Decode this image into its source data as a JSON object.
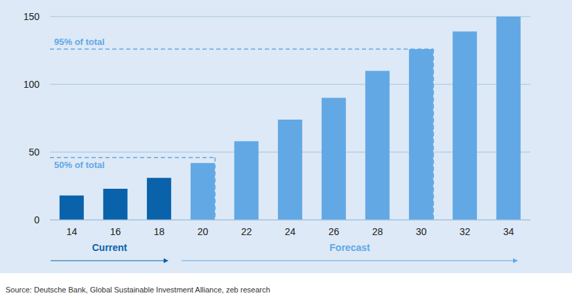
{
  "chart_data": {
    "type": "bar",
    "categories": [
      "14",
      "16",
      "18",
      "20",
      "22",
      "24",
      "26",
      "28",
      "30",
      "32",
      "34"
    ],
    "values": [
      18,
      23,
      31,
      42,
      58,
      74,
      90,
      110,
      126,
      139,
      150
    ],
    "colors": [
      "#0a62ab",
      "#0a62ab",
      "#0a62ab",
      "#62a8e5",
      "#62a8e5",
      "#62a8e5",
      "#62a8e5",
      "#62a8e5",
      "#62a8e5",
      "#62a8e5",
      "#62a8e5"
    ],
    "ylim": [
      0,
      150
    ],
    "yticks": [
      0,
      50,
      100,
      150
    ],
    "grid": true,
    "annotations": [
      {
        "text": "95% of total",
        "y": 126,
        "x_end": "30"
      },
      {
        "text": "50% of total",
        "y": 46,
        "x_end": "20"
      }
    ],
    "periods": [
      {
        "label": "Current",
        "from": "14",
        "to": "18"
      },
      {
        "label": "Forecast",
        "from": "20",
        "to": "34"
      }
    ],
    "source": "Source: Deutsche Bank, Global Sustainable Investment Alliance, zeb research"
  }
}
